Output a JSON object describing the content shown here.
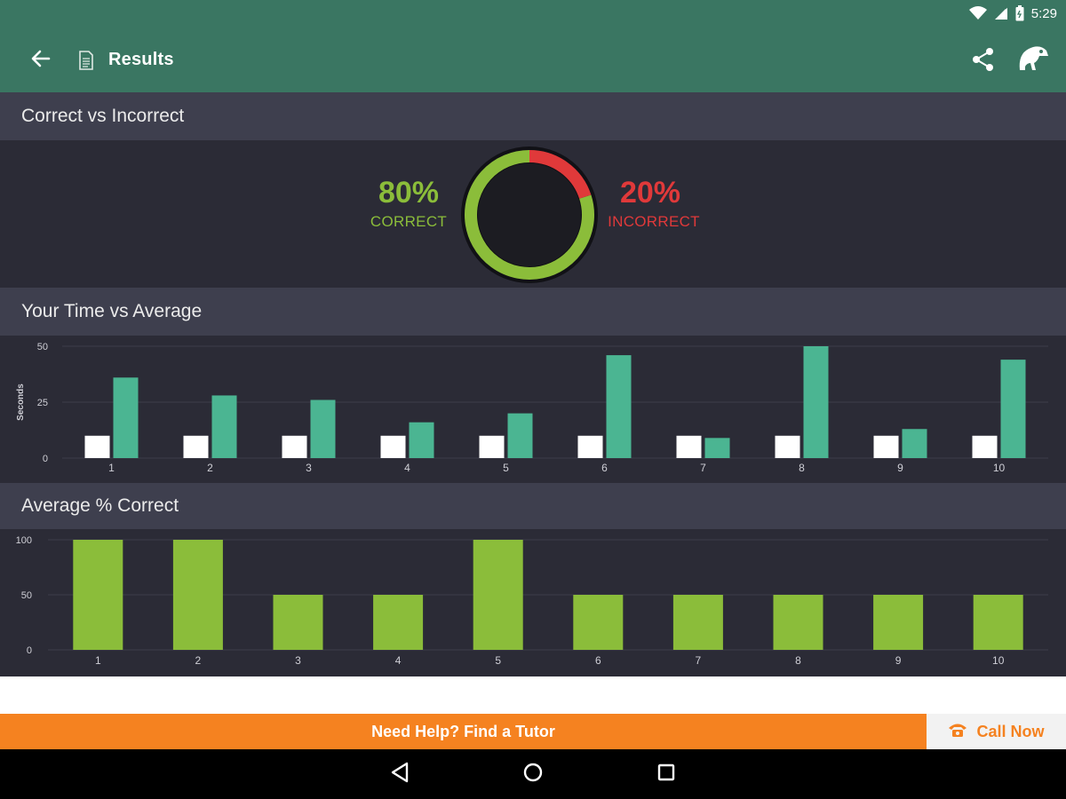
{
  "status_bar": {
    "time": "5:29"
  },
  "app_bar": {
    "title": "Results"
  },
  "sections": {
    "correct_vs_incorrect": {
      "title": "Correct vs Incorrect",
      "correct_percent": "80%",
      "correct_label": "CORRECT",
      "incorrect_percent": "20%",
      "incorrect_label": "INCORRECT"
    },
    "time_vs_average": {
      "title": "Your Time vs Average"
    },
    "average_correct": {
      "title": "Average % Correct"
    }
  },
  "colors": {
    "correct": "#8bbd3a",
    "incorrect": "#e0393a",
    "your_time": "#ffffff",
    "average_time": "#4bb592",
    "avg_correct_bar": "#8bbd3a",
    "accent": "#f58220",
    "app_bar": "#3a7662"
  },
  "footer": {
    "tutor_label": "Need Help? Find a Tutor",
    "call_label": "Call Now"
  },
  "icons": {
    "back": "arrow-left-icon",
    "doc": "document-icon",
    "share": "share-icon",
    "mascot": "chameleon-icon",
    "phone": "phone-icon",
    "nav_back": "triangle-back-icon",
    "nav_home": "circle-home-icon",
    "nav_recents": "square-recents-icon"
  },
  "chart_data": [
    {
      "type": "pie",
      "categories": [
        "CORRECT",
        "INCORRECT"
      ],
      "values": [
        80,
        20
      ]
    },
    {
      "type": "bar",
      "title": "Your Time vs Average",
      "ylabel": "Seconds",
      "categories": [
        "1",
        "2",
        "3",
        "4",
        "5",
        "6",
        "7",
        "8",
        "9",
        "10"
      ],
      "ylim": [
        0,
        50
      ],
      "yticks": [
        0,
        25,
        50
      ],
      "grid": true,
      "series": [
        {
          "values": [
            10,
            10,
            10,
            10,
            10,
            10,
            10,
            10,
            10,
            10
          ]
        },
        {
          "values": [
            36,
            28,
            26,
            16,
            20,
            46,
            9,
            50,
            13,
            44
          ]
        }
      ]
    },
    {
      "type": "bar",
      "title": "Average % Correct",
      "categories": [
        "1",
        "2",
        "3",
        "4",
        "5",
        "6",
        "7",
        "8",
        "9",
        "10"
      ],
      "ylim": [
        0,
        100
      ],
      "yticks": [
        0,
        50,
        100
      ],
      "grid": true,
      "values": [
        100,
        100,
        50,
        50,
        100,
        50,
        50,
        50,
        50,
        50
      ]
    }
  ]
}
